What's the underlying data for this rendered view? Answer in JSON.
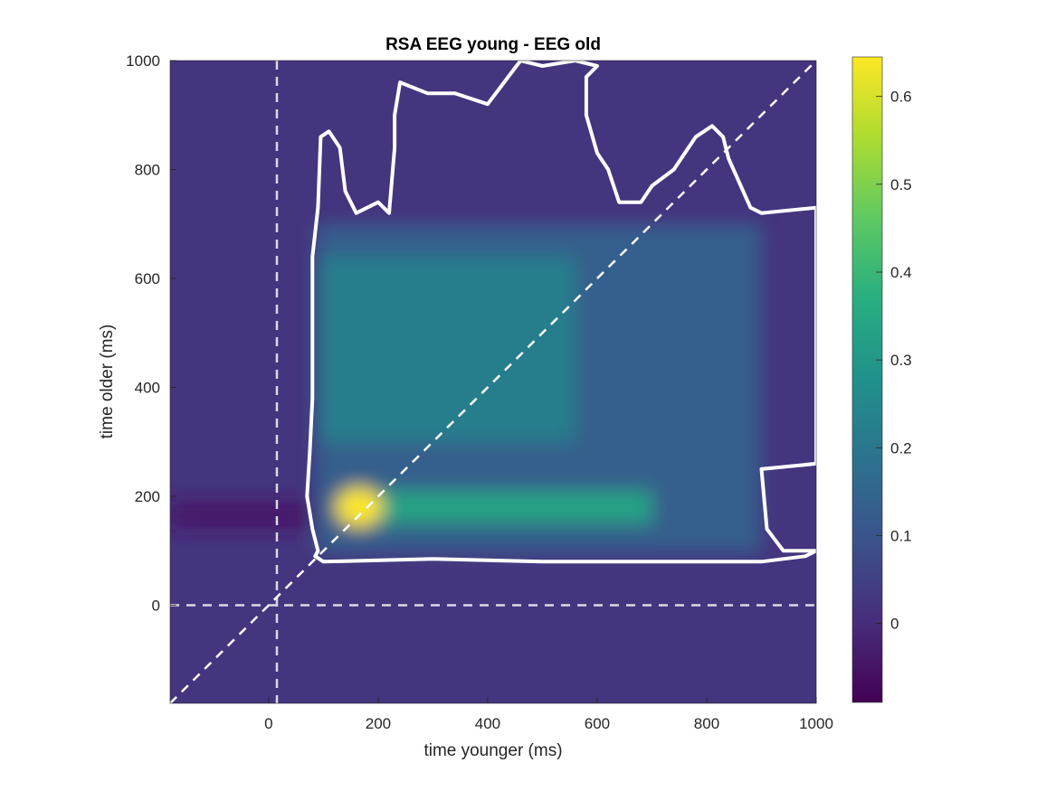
{
  "chart_data": {
    "type": "heatmap",
    "title": "RSA EEG young - EEG old",
    "xlabel": "time younger (ms)",
    "ylabel": "time older (ms)",
    "xlim": [
      -180,
      1000
    ],
    "ylim": [
      -180,
      1000
    ],
    "xticks": [
      0,
      200,
      400,
      600,
      800,
      1000
    ],
    "yticks": [
      0,
      200,
      400,
      600,
      800,
      1000
    ],
    "xtick_labels": [
      "0",
      "200",
      "400",
      "600",
      "800",
      "1000"
    ],
    "ytick_labels": [
      "0",
      "200",
      "400",
      "600",
      "800",
      "1000"
    ],
    "colormap": "viridis",
    "clim": [
      -0.09,
      0.645
    ],
    "colorbar_ticks": [
      0,
      0.1,
      0.2,
      0.3,
      0.4,
      0.5,
      0.6
    ],
    "colorbar_labels": [
      "0",
      "0.1",
      "0.2",
      "0.3",
      "0.4",
      "0.5",
      "0.6"
    ],
    "reference_lines": {
      "vertical_x": 15,
      "horizontal_y": 0,
      "diagonal": "y = x",
      "style": "dashed"
    },
    "peak": {
      "x": 165,
      "y": 180,
      "value": 0.645
    },
    "significance_contour": [
      [
        85,
        90
      ],
      [
        100,
        80
      ],
      [
        300,
        85
      ],
      [
        500,
        80
      ],
      [
        560,
        80
      ],
      [
        650,
        80
      ],
      [
        800,
        80
      ],
      [
        900,
        80
      ],
      [
        980,
        90
      ],
      [
        1000,
        100
      ],
      [
        940,
        100
      ],
      [
        910,
        140
      ],
      [
        900,
        250
      ],
      [
        1000,
        260
      ],
      [
        1000,
        730
      ],
      [
        900,
        720
      ],
      [
        880,
        730
      ],
      [
        840,
        820
      ],
      [
        830,
        860
      ],
      [
        810,
        880
      ],
      [
        780,
        860
      ],
      [
        760,
        830
      ],
      [
        740,
        800
      ],
      [
        700,
        770
      ],
      [
        680,
        740
      ],
      [
        640,
        740
      ],
      [
        620,
        800
      ],
      [
        600,
        830
      ],
      [
        580,
        900
      ],
      [
        580,
        970
      ],
      [
        600,
        990
      ],
      [
        560,
        1000
      ],
      [
        500,
        990
      ],
      [
        460,
        1000
      ],
      [
        400,
        920
      ],
      [
        340,
        940
      ],
      [
        290,
        940
      ],
      [
        240,
        960
      ],
      [
        230,
        900
      ],
      [
        230,
        840
      ],
      [
        220,
        720
      ],
      [
        200,
        740
      ],
      [
        160,
        720
      ],
      [
        140,
        760
      ],
      [
        130,
        840
      ],
      [
        110,
        870
      ],
      [
        95,
        860
      ],
      [
        90,
        730
      ],
      [
        80,
        640
      ],
      [
        80,
        540
      ],
      [
        80,
        380
      ],
      [
        75,
        280
      ],
      [
        70,
        200
      ],
      [
        80,
        140
      ],
      [
        90,
        100
      ]
    ],
    "colors": {
      "line": "#ffffff",
      "ref_line": "#d9d9e6"
    }
  }
}
